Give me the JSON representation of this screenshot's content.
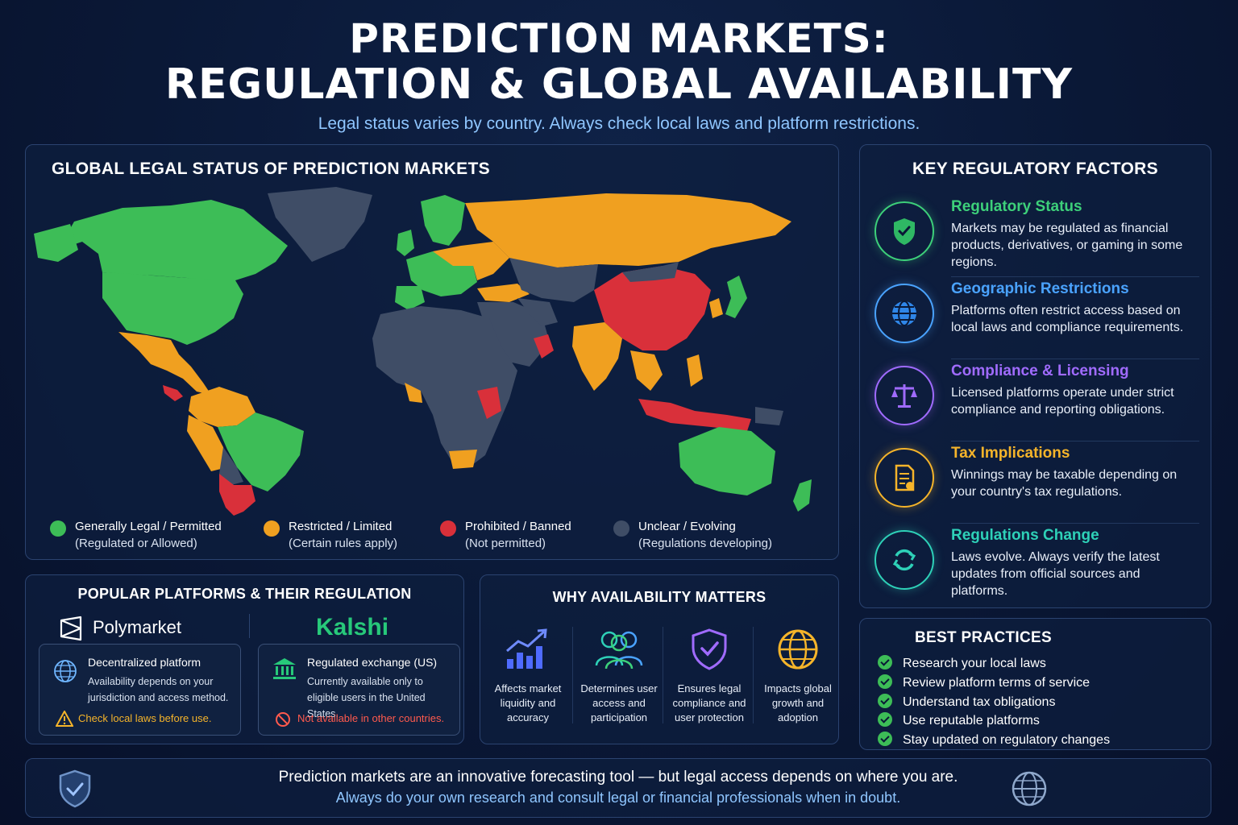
{
  "header": {
    "title_line1": "PREDICTION MARKETS:",
    "title_line2": "REGULATION & GLOBAL AVAILABILITY",
    "subtitle": "Legal status varies by country. Always check local laws and platform restrictions."
  },
  "map": {
    "title": "GLOBAL LEGAL STATUS OF PREDICTION MARKETS",
    "legend": [
      {
        "label": "Generally Legal / Permitted",
        "sub": "(Regulated or Allowed)",
        "color": "#3dbd57"
      },
      {
        "label": "Restricted / Limited",
        "sub": "(Certain rules apply)",
        "color": "#f0a020"
      },
      {
        "label": "Prohibited / Banned",
        "sub": "(Not permitted)",
        "color": "#d9303a"
      },
      {
        "label": "Unclear / Evolving",
        "sub": "(Regulations developing)",
        "color": "#3f4d66"
      }
    ]
  },
  "factors": {
    "title": "KEY REGULATORY FACTORS",
    "items": [
      {
        "title": "Regulatory Status",
        "desc": "Markets may be regulated as financial products, derivatives, or gaming in some regions.",
        "color": "#3dd07a",
        "icon": "shield-check-icon"
      },
      {
        "title": "Geographic Restrictions",
        "desc": "Platforms often restrict access based on local laws and compliance requirements.",
        "color": "#4aa3ff",
        "icon": "globe-icon"
      },
      {
        "title": "Compliance & Licensing",
        "desc": "Licensed platforms operate under strict compliance and reporting obligations.",
        "color": "#a06bff",
        "icon": "scales-icon"
      },
      {
        "title": "Tax Implications",
        "desc": "Winnings may be taxable depending on your country's tax regulations.",
        "color": "#f5b42a",
        "icon": "document-icon"
      },
      {
        "title": "Regulations Change",
        "desc": "Laws evolve. Always verify the latest updates from official sources and platforms.",
        "color": "#2ed1b8",
        "icon": "refresh-icon"
      }
    ]
  },
  "platforms": {
    "title": "POPULAR PLATFORMS & THEIR REGULATION",
    "polymarket": {
      "name": "Polymarket",
      "card_title": "Decentralized platform",
      "card_desc": "Availability depends on your jurisdiction and access method.",
      "warning": "Check local laws before use.",
      "warning_color": "#f5b42a"
    },
    "kalshi": {
      "name": "Kalshi",
      "card_title": "Regulated exchange (US)",
      "card_desc": "Currently available only to eligible users in the United States.",
      "warning": "Not available in other countries.",
      "warning_color": "#ff5a4d",
      "brand_color": "#27c97a"
    }
  },
  "why": {
    "title": "WHY AVAILABILITY MATTERS",
    "items": [
      {
        "text": "Affects market liquidity and accuracy",
        "icon": "growth-chart-icon"
      },
      {
        "text": "Determines user access and participation",
        "icon": "users-icon"
      },
      {
        "text": "Ensures legal compliance and user protection",
        "icon": "shield-check-icon"
      },
      {
        "text": "Impacts global growth and adoption",
        "icon": "globe-icon"
      }
    ]
  },
  "best_practices": {
    "title": "BEST PRACTICES",
    "items": [
      "Research your local laws",
      "Review platform terms of service",
      "Understand tax obligations",
      "Use reputable platforms",
      "Stay updated on regulatory changes"
    ]
  },
  "footer": {
    "line1": "Prediction markets are an innovative forecasting tool — but legal access depends on where you are.",
    "line2": "Always do your own research and consult legal or financial professionals when in doubt."
  }
}
